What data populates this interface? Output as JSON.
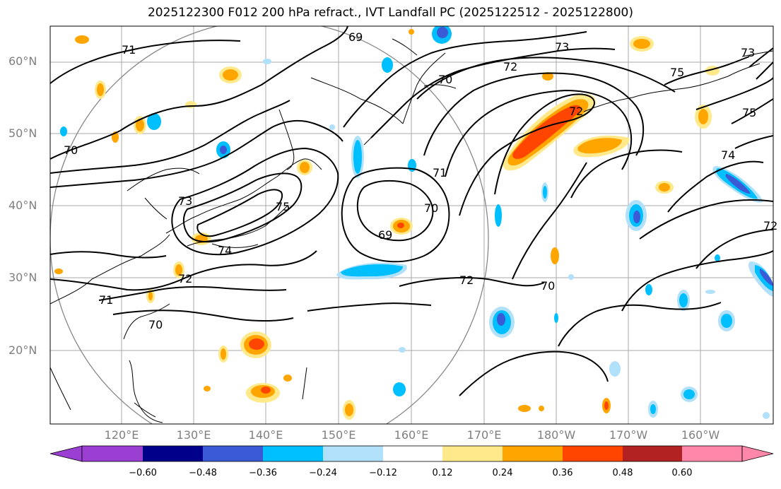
{
  "title": "2025122300 F012 200 hPa refract., IVT Landfall PC (2025122512 - 2025122800)",
  "lat_labels": [
    "60°N",
    "50°N",
    "40°N",
    "30°N",
    "20°N"
  ],
  "lon_labels": [
    "120°E",
    "130°E",
    "140°E",
    "150°E",
    "160°E",
    "170°E",
    "180°W",
    "170°W",
    "160°W"
  ],
  "contour_labels": [
    "69",
    "70",
    "71",
    "72",
    "73",
    "74",
    "75"
  ],
  "colorbar": {
    "ticks": [
      "−0.60",
      "−0.48",
      "−0.36",
      "−0.24",
      "−0.12",
      "0.12",
      "0.24",
      "0.36",
      "0.48",
      "0.60"
    ],
    "colors": [
      "#9b3fd3",
      "#00008b",
      "#3b5bd6",
      "#00bfff",
      "#b0e0fa",
      "#ffffff",
      "#ffe98a",
      "#ffa500",
      "#ff4500",
      "#b22222",
      "#ff88aa"
    ]
  },
  "map_features": [
    "coastlines",
    "graticule",
    "refractivity contours",
    "IVT landfall PC shading",
    "great-circle range ring"
  ]
}
